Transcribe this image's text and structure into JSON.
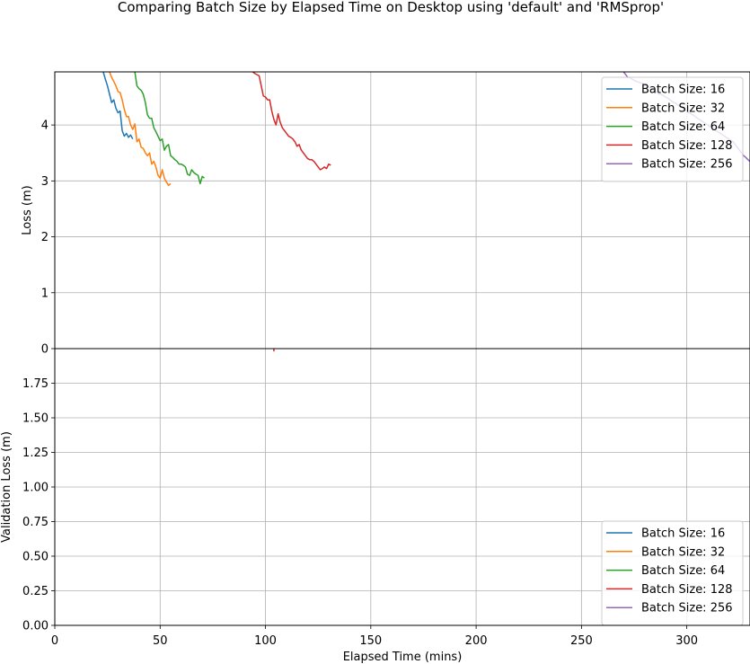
{
  "chart_data": {
    "type": "line",
    "title": "Comparing Batch Size by Elapsed Time on Desktop using 'default' and 'RMSprop'",
    "xlabel": "Elapsed Time (mins)",
    "xlim": [
      0,
      330
    ],
    "xticks": [
      "0",
      "50",
      "100",
      "150",
      "200",
      "250",
      "300"
    ],
    "grid": true,
    "legend_labels": [
      "Batch Size: 16",
      "Batch Size: 32",
      "Batch Size: 64",
      "Batch Size: 128",
      "Batch Size: 256"
    ],
    "colors": [
      "#1f77b4",
      "#ff7f0e",
      "#2ca02c",
      "#d62728",
      "#9467bd"
    ],
    "panels": [
      {
        "ylabel": "Loss (m)",
        "ylim": [
          0,
          4.95
        ],
        "yticks": [
          "0",
          "1",
          "2",
          "3",
          "4"
        ],
        "legend": "top-right",
        "series": [
          {
            "name": "Batch Size: 16",
            "x": [
              23,
              24,
              25,
              26,
              27,
              28,
              29,
              30,
              31,
              32,
              33,
              34,
              35,
              36,
              37
            ],
            "y": [
              4.95,
              4.82,
              4.7,
              4.55,
              4.4,
              4.45,
              4.3,
              4.22,
              4.25,
              3.9,
              3.8,
              3.85,
              3.78,
              3.82,
              3.75
            ]
          },
          {
            "name": "Batch Size: 32",
            "x": [
              26,
              27,
              28,
              29,
              30,
              31,
              32,
              33,
              34,
              35,
              36,
              37,
              38,
              39,
              40,
              41,
              42,
              43,
              44,
              45,
              46,
              47,
              48,
              49,
              50,
              51,
              52,
              53,
              54,
              55
            ],
            "y": [
              4.95,
              4.85,
              4.78,
              4.7,
              4.6,
              4.58,
              4.45,
              4.28,
              4.15,
              4.15,
              4.0,
              3.92,
              4.02,
              3.7,
              3.75,
              3.6,
              3.58,
              3.5,
              3.45,
              3.5,
              3.3,
              3.35,
              3.25,
              3.1,
              3.05,
              3.2,
              3.05,
              2.98,
              2.92,
              2.95
            ]
          },
          {
            "name": "Batch Size: 64",
            "x": [
              38,
              39,
              40,
              41,
              42,
              43,
              44,
              45,
              46,
              47,
              48,
              49,
              50,
              51,
              52,
              53,
              54,
              55,
              56,
              57,
              58,
              59,
              60,
              61,
              62,
              63,
              64,
              65,
              66,
              67,
              68,
              69,
              70,
              71
            ],
            "y": [
              4.95,
              4.7,
              4.65,
              4.62,
              4.55,
              4.4,
              4.18,
              4.12,
              4.12,
              3.95,
              3.88,
              3.8,
              3.72,
              3.75,
              3.55,
              3.62,
              3.65,
              3.45,
              3.42,
              3.38,
              3.35,
              3.3,
              3.3,
              3.28,
              3.25,
              3.12,
              3.1,
              3.2,
              3.15,
              3.12,
              3.1,
              2.95,
              3.08,
              3.05
            ]
          },
          {
            "name": "Batch Size: 128",
            "x": [
              94,
              95,
              96,
              97,
              98,
              99,
              100,
              101,
              102,
              103,
              104,
              105,
              106,
              107,
              108,
              109,
              110,
              111,
              112,
              113,
              114,
              115,
              116,
              117,
              118,
              119,
              120,
              121,
              122,
              123,
              124,
              125,
              126,
              127,
              128,
              129,
              130,
              131
            ],
            "y": [
              4.95,
              4.92,
              4.9,
              4.88,
              4.7,
              4.52,
              4.5,
              4.45,
              4.45,
              4.25,
              4.1,
              4.0,
              4.2,
              4.05,
              3.95,
              3.9,
              3.85,
              3.8,
              3.78,
              3.75,
              3.7,
              3.62,
              3.65,
              3.55,
              3.5,
              3.45,
              3.4,
              3.38,
              3.38,
              3.35,
              3.3,
              3.25,
              3.2,
              3.22,
              3.25,
              3.22,
              3.3,
              3.28
            ]
          },
          {
            "name": "Batch Size: 256",
            "x": [
              270,
              271,
              272,
              273,
              274,
              275,
              276,
              277,
              278,
              279,
              280,
              281,
              282,
              283,
              284,
              285,
              286,
              287,
              288,
              289,
              290,
              291,
              292,
              293,
              294,
              295,
              296,
              297,
              298,
              299,
              300,
              301,
              302,
              303,
              304,
              305,
              306,
              307,
              308,
              309,
              310,
              311,
              312,
              313,
              314,
              315,
              316,
              317,
              318,
              319,
              320,
              321,
              322,
              323,
              324,
              325,
              326,
              327,
              328,
              329,
              330
            ],
            "y": [
              4.95,
              4.9,
              4.85,
              4.85,
              4.82,
              4.8,
              4.78,
              4.77,
              4.75,
              4.75,
              4.72,
              4.7,
              4.68,
              4.65,
              4.63,
              4.6,
              4.58,
              4.55,
              4.55,
              4.52,
              4.5,
              4.48,
              4.45,
              4.42,
              4.4,
              4.38,
              4.35,
              4.33,
              4.3,
              4.28,
              4.25,
              4.22,
              4.2,
              4.18,
              4.15,
              4.12,
              4.1,
              4.07,
              4.05,
              4.02,
              4.0,
              3.97,
              3.95,
              3.92,
              3.9,
              3.87,
              3.85,
              3.82,
              3.8,
              3.77,
              3.75,
              3.72,
              3.7,
              3.65,
              3.6,
              3.55,
              3.5,
              3.45,
              3.42,
              3.38,
              3.35
            ]
          }
        ]
      },
      {
        "ylabel": "Validation Loss (m)",
        "ylim": [
          0,
          2.0
        ],
        "yticks": [
          "0.00",
          "0.25",
          "0.50",
          "0.75",
          "1.00",
          "1.25",
          "1.50",
          "1.75"
        ],
        "legend": "bottom-right",
        "series": [
          {
            "name": "Batch Size: 16",
            "x": [],
            "y": []
          },
          {
            "name": "Batch Size: 32",
            "x": [],
            "y": []
          },
          {
            "name": "Batch Size: 64",
            "x": [],
            "y": []
          },
          {
            "name": "Batch Size: 128",
            "x": [
              104,
              104
            ],
            "y": [
              1.98,
              2.0
            ]
          },
          {
            "name": "Batch Size: 256",
            "x": [],
            "y": []
          }
        ]
      }
    ]
  }
}
